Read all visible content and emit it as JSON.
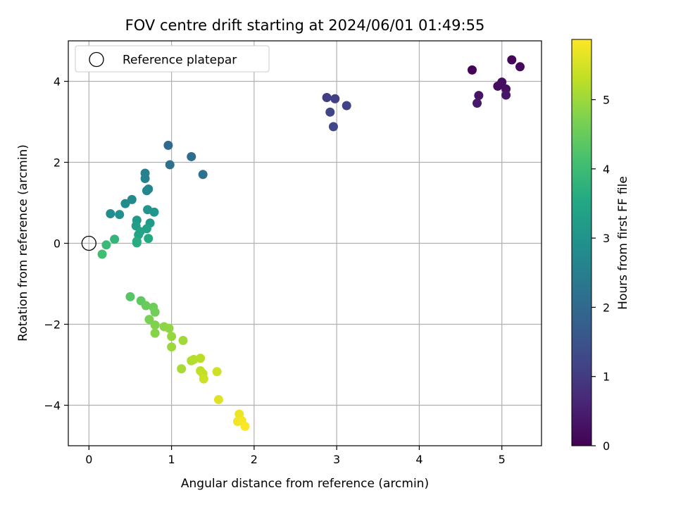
{
  "chart_data": {
    "type": "scatter",
    "title": "FOV centre drift starting at 2024/06/01 01:49:55",
    "xlabel": "Angular distance from reference (arcmin)",
    "ylabel": "Rotation from reference (arcmin)",
    "xlim": [
      -0.25,
      5.48
    ],
    "ylim": [
      -5.0,
      5.0
    ],
    "xticks": [
      0,
      1,
      2,
      3,
      4,
      5
    ],
    "xtick_labels": [
      "0",
      "1",
      "2",
      "3",
      "4",
      "5"
    ],
    "yticks": [
      -4,
      -2,
      0,
      2,
      4
    ],
    "ytick_labels": [
      "−4",
      "−2",
      "0",
      "2",
      "4"
    ],
    "grid": true,
    "legend": {
      "placement": "top-left",
      "entries": [
        {
          "label": "Reference platepar",
          "marker": "open-circle",
          "color": "#000000"
        }
      ]
    },
    "reference_point": {
      "x": 0,
      "y": 0
    },
    "colorbar": {
      "label": "Hours from first FF file",
      "colormap": "viridis",
      "range": [
        0,
        5.87
      ],
      "ticks": [
        0,
        1,
        2,
        3,
        4,
        5
      ],
      "tick_labels": [
        "0",
        "1",
        "2",
        "3",
        "4",
        "5"
      ]
    },
    "points": [
      {
        "x": 4.64,
        "y": 4.28,
        "c": 0.05
      },
      {
        "x": 5.12,
        "y": 4.53,
        "c": 0.08
      },
      {
        "x": 5.22,
        "y": 4.36,
        "c": 0.12
      },
      {
        "x": 4.95,
        "y": 3.88,
        "c": 0.18
      },
      {
        "x": 5.0,
        "y": 3.98,
        "c": 0.22
      },
      {
        "x": 5.05,
        "y": 3.81,
        "c": 0.25
      },
      {
        "x": 4.72,
        "y": 3.65,
        "c": 0.3
      },
      {
        "x": 5.05,
        "y": 3.66,
        "c": 0.35
      },
      {
        "x": 4.7,
        "y": 3.46,
        "c": 0.4
      },
      {
        "x": 2.88,
        "y": 3.6,
        "c": 1.05
      },
      {
        "x": 2.98,
        "y": 3.57,
        "c": 1.1
      },
      {
        "x": 3.12,
        "y": 3.4,
        "c": 1.15
      },
      {
        "x": 2.92,
        "y": 3.24,
        "c": 1.2
      },
      {
        "x": 2.96,
        "y": 2.88,
        "c": 1.25
      },
      {
        "x": 0.96,
        "y": 2.42,
        "c": 2.05
      },
      {
        "x": 1.24,
        "y": 2.14,
        "c": 2.1
      },
      {
        "x": 0.98,
        "y": 1.94,
        "c": 2.15
      },
      {
        "x": 1.38,
        "y": 1.7,
        "c": 2.2
      },
      {
        "x": 0.68,
        "y": 1.73,
        "c": 2.55
      },
      {
        "x": 0.68,
        "y": 1.6,
        "c": 2.6
      },
      {
        "x": 0.72,
        "y": 1.34,
        "c": 2.65
      },
      {
        "x": 0.7,
        "y": 1.3,
        "c": 2.7
      },
      {
        "x": 0.52,
        "y": 1.08,
        "c": 2.75
      },
      {
        "x": 0.44,
        "y": 0.98,
        "c": 2.8
      },
      {
        "x": 0.26,
        "y": 0.73,
        "c": 2.85
      },
      {
        "x": 0.37,
        "y": 0.71,
        "c": 2.9
      },
      {
        "x": 0.71,
        "y": 0.83,
        "c": 3.0
      },
      {
        "x": 0.79,
        "y": 0.77,
        "c": 3.05
      },
      {
        "x": 0.58,
        "y": 0.57,
        "c": 3.15
      },
      {
        "x": 0.74,
        "y": 0.5,
        "c": 3.2
      },
      {
        "x": 0.57,
        "y": 0.43,
        "c": 3.25
      },
      {
        "x": 0.7,
        "y": 0.36,
        "c": 3.35
      },
      {
        "x": 0.62,
        "y": 0.29,
        "c": 3.4
      },
      {
        "x": 0.6,
        "y": 0.21,
        "c": 3.45
      },
      {
        "x": 0.72,
        "y": 0.12,
        "c": 3.55
      },
      {
        "x": 0.58,
        "y": 0.05,
        "c": 3.6
      },
      {
        "x": 0.58,
        "y": 0.01,
        "c": 3.65
      },
      {
        "x": 0.31,
        "y": 0.1,
        "c": 3.85
      },
      {
        "x": 0.21,
        "y": -0.04,
        "c": 3.95
      },
      {
        "x": 0.16,
        "y": -0.27,
        "c": 4.05
      },
      {
        "x": 0.5,
        "y": -1.32,
        "c": 4.3
      },
      {
        "x": 0.63,
        "y": -1.42,
        "c": 4.4
      },
      {
        "x": 0.69,
        "y": -1.54,
        "c": 4.5
      },
      {
        "x": 0.78,
        "y": -1.58,
        "c": 4.55
      },
      {
        "x": 0.8,
        "y": -1.7,
        "c": 4.6
      },
      {
        "x": 0.73,
        "y": -1.88,
        "c": 4.7
      },
      {
        "x": 0.8,
        "y": -2.02,
        "c": 4.75
      },
      {
        "x": 0.8,
        "y": -2.22,
        "c": 4.8
      },
      {
        "x": 0.91,
        "y": -2.06,
        "c": 4.85
      },
      {
        "x": 0.97,
        "y": -2.1,
        "c": 4.9
      },
      {
        "x": 1.0,
        "y": -2.3,
        "c": 4.95
      },
      {
        "x": 1.0,
        "y": -2.56,
        "c": 5.0
      },
      {
        "x": 1.14,
        "y": -2.4,
        "c": 5.05
      },
      {
        "x": 1.12,
        "y": -3.1,
        "c": 5.1
      },
      {
        "x": 1.24,
        "y": -2.9,
        "c": 5.15
      },
      {
        "x": 1.27,
        "y": -2.87,
        "c": 5.2
      },
      {
        "x": 1.35,
        "y": -2.84,
        "c": 5.25
      },
      {
        "x": 1.35,
        "y": -3.15,
        "c": 5.3
      },
      {
        "x": 1.38,
        "y": -3.22,
        "c": 5.35
      },
      {
        "x": 1.39,
        "y": -3.35,
        "c": 5.4
      },
      {
        "x": 1.55,
        "y": -3.17,
        "c": 5.45
      },
      {
        "x": 1.57,
        "y": -3.86,
        "c": 5.6
      },
      {
        "x": 1.82,
        "y": -4.22,
        "c": 5.7
      },
      {
        "x": 1.8,
        "y": -4.4,
        "c": 5.75
      },
      {
        "x": 1.85,
        "y": -4.38,
        "c": 5.8
      },
      {
        "x": 1.89,
        "y": -4.52,
        "c": 5.85
      }
    ]
  }
}
